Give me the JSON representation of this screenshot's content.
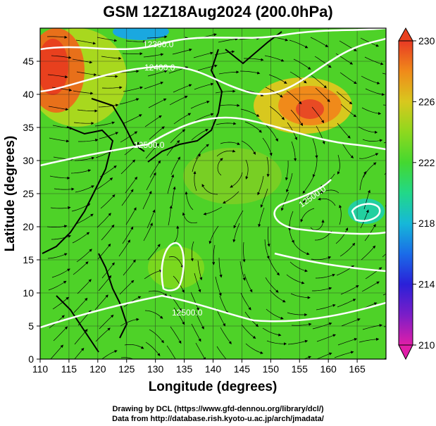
{
  "title": "GSM 12Z18Aug2024 (200.0hPa)",
  "xlabel": "Longitude (degrees)",
  "ylabel": "Latitude  (degrees)",
  "x_ticks": [
    "110",
    "115",
    "120",
    "125",
    "130",
    "135",
    "140",
    "145",
    "150",
    "155",
    "160",
    "165"
  ],
  "y_ticks": [
    "0",
    "5",
    "10",
    "15",
    "20",
    "25",
    "30",
    "35",
    "40",
    "45"
  ],
  "colorbar": {
    "ticks": [
      "210",
      "214",
      "218",
      "222",
      "226",
      "230"
    ],
    "min": 210,
    "max": 230,
    "colors": [
      "#e01ea8",
      "#7a1ec8",
      "#2a20d8",
      "#1a6ce8",
      "#16b8d8",
      "#22d888",
      "#44d830",
      "#8ed81e",
      "#d8c81e",
      "#f08a1a",
      "#e83a24"
    ]
  },
  "contour_labels": [
    {
      "text": "12300.0"
    },
    {
      "text": "12400.0"
    },
    {
      "text": "12500.0"
    },
    {
      "text": "12500.0"
    },
    {
      "text": "12500.0"
    }
  ],
  "footer": {
    "line1": "Drawing by DCL (https://www.gfd-dennou.org/library/dcl/)",
    "line2": "Data from http://database.rish.kyoto-u.ac.jp/arch/jmadata/"
  },
  "chart_data": {
    "type": "heatmap",
    "title": "GSM 12Z18Aug2024 (200.0hPa)",
    "xlabel": "Longitude (degrees)",
    "ylabel": "Latitude  (degrees)",
    "xlim": [
      110,
      170
    ],
    "ylim": [
      0,
      50
    ],
    "field": "temperature (colorbar 210-230) with geopotential height contours and wind streamlines",
    "warm_spots": [
      {
        "lon": 112,
        "lat": 43,
        "value": 229
      },
      {
        "lon": 158,
        "lat": 39,
        "value": 228
      }
    ],
    "cool_spots": [
      {
        "lon": 126,
        "lat": 49,
        "value": 218
      }
    ],
    "contours": [
      {
        "level": 12300.0
      },
      {
        "level": 12400.0
      },
      {
        "level": 12500.0
      }
    ]
  }
}
